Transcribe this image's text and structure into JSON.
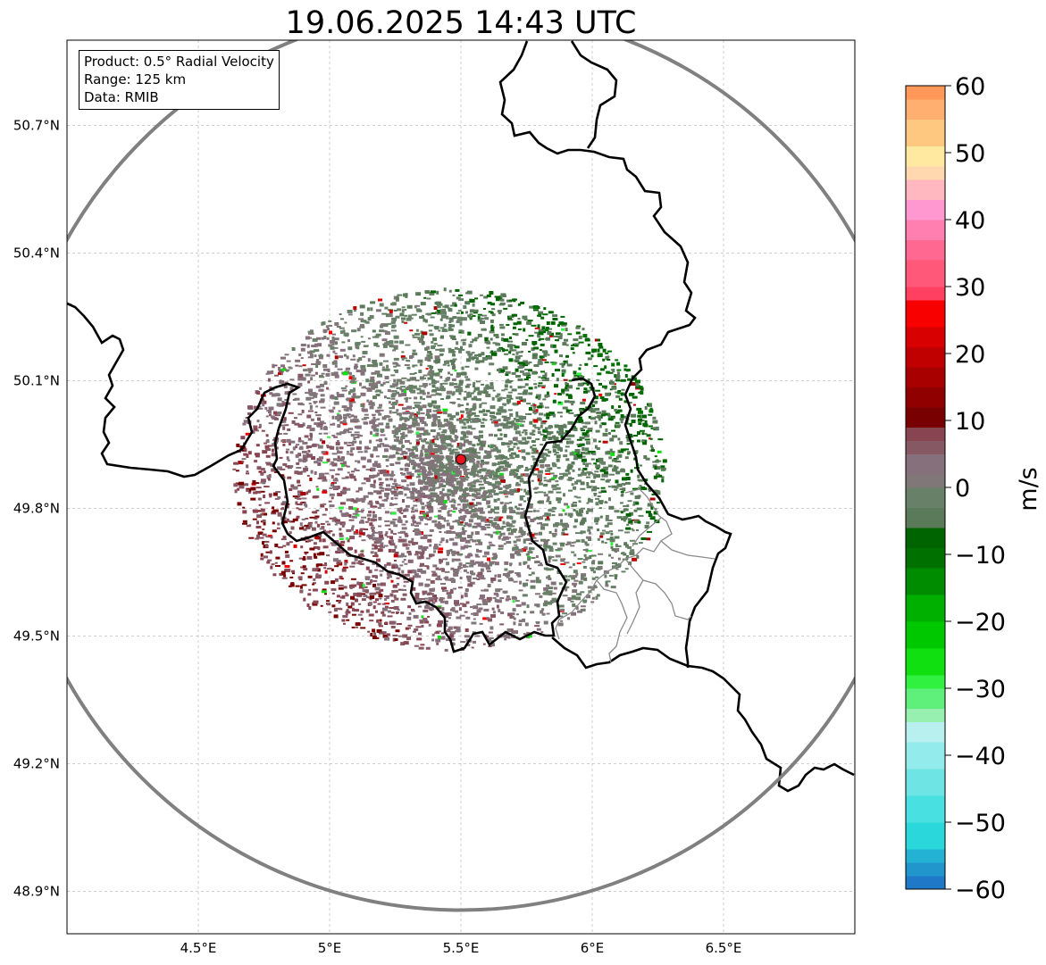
{
  "title": "19.06.2025 14:43 UTC",
  "info": {
    "product": "Product: 0.5° Radial Velocity",
    "range": "Range: 125 km",
    "source": "Data: RMIB"
  },
  "map_extent": {
    "lon": [
      4.0,
      7.0
    ],
    "lat": [
      48.8,
      50.9
    ]
  },
  "radar_site": {
    "lon": 5.5,
    "lat": 49.915,
    "marker_color": "#e8141b"
  },
  "range_ring_color": "#808080",
  "lon_ticks": [
    {
      "value": 4.5,
      "label": "4.5°E"
    },
    {
      "value": 5.0,
      "label": "5°E"
    },
    {
      "value": 5.5,
      "label": "5.5°E"
    },
    {
      "value": 6.0,
      "label": "6°E"
    },
    {
      "value": 6.5,
      "label": "6.5°E"
    }
  ],
  "lat_ticks": [
    {
      "value": 50.7,
      "label": "50.7°N"
    },
    {
      "value": 50.4,
      "label": "50.4°N"
    },
    {
      "value": 50.1,
      "label": "50.1°N"
    },
    {
      "value": 49.8,
      "label": "49.8°N"
    },
    {
      "value": 49.5,
      "label": "49.5°N"
    },
    {
      "value": 49.2,
      "label": "49.2°N"
    },
    {
      "value": 48.9,
      "label": "48.9°N"
    }
  ],
  "colorbar": {
    "unit": "m/s",
    "min": -60,
    "max": 60,
    "ticks": [
      {
        "value": 60,
        "label": "60"
      },
      {
        "value": 50,
        "label": "50"
      },
      {
        "value": 40,
        "label": "40"
      },
      {
        "value": 30,
        "label": "30"
      },
      {
        "value": 20,
        "label": "20"
      },
      {
        "value": 10,
        "label": "10"
      },
      {
        "value": 0,
        "label": "0"
      },
      {
        "value": -10,
        "label": "−10"
      },
      {
        "value": -20,
        "label": "−20"
      },
      {
        "value": -30,
        "label": "−30"
      },
      {
        "value": -40,
        "label": "−40"
      },
      {
        "value": -50,
        "label": "−50"
      },
      {
        "value": -60,
        "label": "−60"
      }
    ],
    "stops": [
      {
        "from": -60,
        "to": -58,
        "color": "#1f78c8"
      },
      {
        "from": -58,
        "to": -56,
        "color": "#2196cc"
      },
      {
        "from": -56,
        "to": -54,
        "color": "#23b2d4"
      },
      {
        "from": -54,
        "to": -50,
        "color": "#2ad8dc"
      },
      {
        "from": -50,
        "to": -46,
        "color": "#48e0e0"
      },
      {
        "from": -46,
        "to": -42,
        "color": "#6ee4e4"
      },
      {
        "from": -42,
        "to": -38,
        "color": "#94ebeb"
      },
      {
        "from": -38,
        "to": -35,
        "color": "#b8f0f0"
      },
      {
        "from": -35,
        "to": -33,
        "color": "#98f0b0"
      },
      {
        "from": -33,
        "to": -30,
        "color": "#5ef07a"
      },
      {
        "from": -30,
        "to": -28,
        "color": "#30f040"
      },
      {
        "from": -28,
        "to": -24,
        "color": "#10e010"
      },
      {
        "from": -24,
        "to": -20,
        "color": "#00c800"
      },
      {
        "from": -20,
        "to": -16,
        "color": "#00b000"
      },
      {
        "from": -16,
        "to": -12,
        "color": "#008c00"
      },
      {
        "from": -12,
        "to": -9,
        "color": "#007000"
      },
      {
        "from": -9,
        "to": -6,
        "color": "#006400"
      },
      {
        "from": -6,
        "to": -3,
        "color": "#5a7a5a"
      },
      {
        "from": -3,
        "to": 0,
        "color": "#688068"
      },
      {
        "from": 0,
        "to": 2,
        "color": "#807878"
      },
      {
        "from": 2,
        "to": 5,
        "color": "#86707c"
      },
      {
        "from": 5,
        "to": 7,
        "color": "#865864"
      },
      {
        "from": 7,
        "to": 9,
        "color": "#884450"
      },
      {
        "from": 9,
        "to": 12,
        "color": "#780000"
      },
      {
        "from": 12,
        "to": 15,
        "color": "#900000"
      },
      {
        "from": 15,
        "to": 18,
        "color": "#a80000"
      },
      {
        "from": 18,
        "to": 21,
        "color": "#c00000"
      },
      {
        "from": 21,
        "to": 24,
        "color": "#d80000"
      },
      {
        "from": 24,
        "to": 28,
        "color": "#f80000"
      },
      {
        "from": 28,
        "to": 30,
        "color": "#ff4060"
      },
      {
        "from": 30,
        "to": 34,
        "color": "#ff5878"
      },
      {
        "from": 34,
        "to": 37,
        "color": "#ff6890"
      },
      {
        "from": 37,
        "to": 40,
        "color": "#ff80b0"
      },
      {
        "from": 40,
        "to": 43,
        "color": "#ff98d0"
      },
      {
        "from": 43,
        "to": 46,
        "color": "#ffb8c0"
      },
      {
        "from": 46,
        "to": 48,
        "color": "#ffd8b0"
      },
      {
        "from": 48,
        "to": 51,
        "color": "#ffe8a0"
      },
      {
        "from": 51,
        "to": 55,
        "color": "#ffc880"
      },
      {
        "from": 55,
        "to": 58,
        "color": "#ffb070"
      },
      {
        "from": 58,
        "to": 60,
        "color": "#ff9858"
      }
    ]
  }
}
